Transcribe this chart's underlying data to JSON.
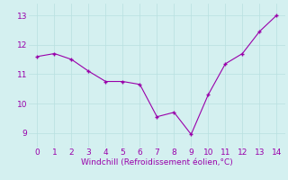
{
  "x": [
    0,
    1,
    2,
    3,
    4,
    5,
    6,
    7,
    8,
    9,
    10,
    11,
    12,
    13,
    14
  ],
  "y": [
    11.6,
    11.7,
    11.5,
    11.1,
    10.75,
    10.75,
    10.65,
    9.55,
    9.7,
    8.95,
    10.3,
    11.35,
    11.7,
    12.45,
    13.0
  ],
  "line_color": "#9900aa",
  "marker": "+",
  "xlabel": "Windchill (Refroidissement éolien,°C)",
  "xlabel_color": "#9900aa",
  "background_color": "#d4f0f0",
  "grid_color": "#b8e0e0",
  "ylim": [
    8.5,
    13.4
  ],
  "xlim": [
    -0.5,
    14.5
  ],
  "yticks": [
    9,
    10,
    11,
    12,
    13
  ],
  "xticks": [
    0,
    1,
    2,
    3,
    4,
    5,
    6,
    7,
    8,
    9,
    10,
    11,
    12,
    13,
    14
  ],
  "tick_color": "#9900aa",
  "tick_fontsize": 6.5,
  "xlabel_fontsize": 6.5,
  "linewidth": 0.8,
  "markersize": 3.5
}
